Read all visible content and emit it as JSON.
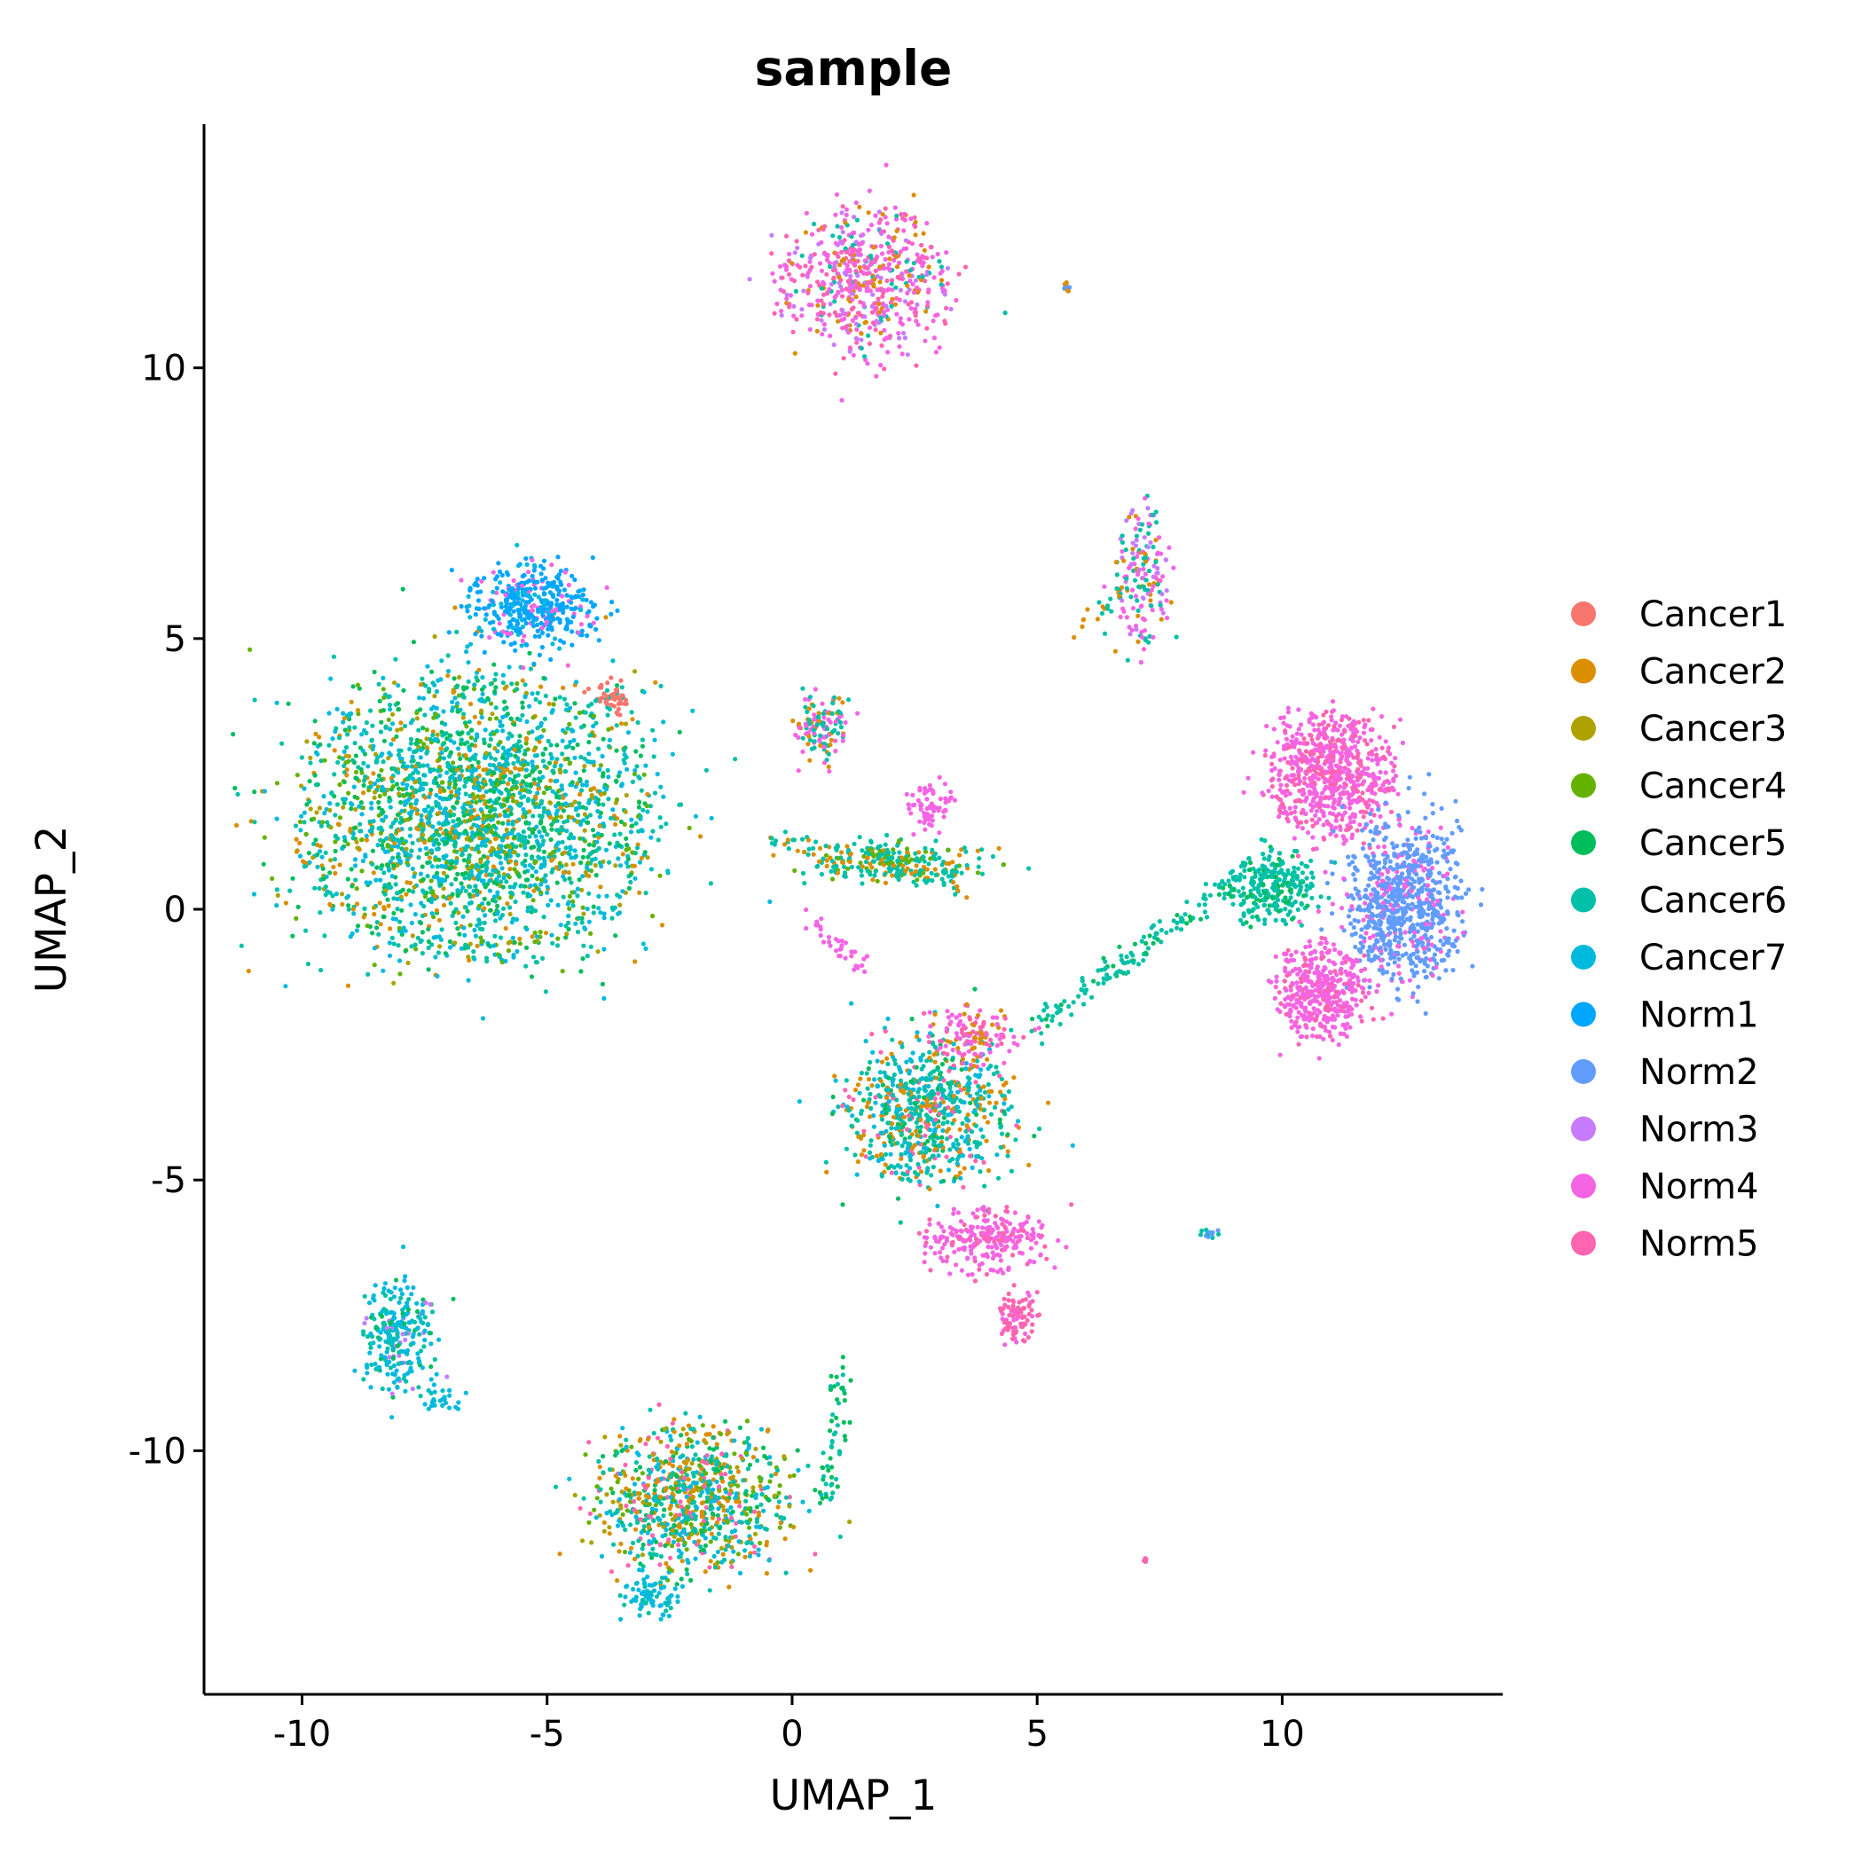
{
  "chart_data": {
    "type": "scatter",
    "title": "sample",
    "xlabel": "UMAP_1",
    "ylabel": "UMAP_2",
    "xlim": [
      -12.0,
      14.5
    ],
    "ylim": [
      -14.5,
      14.5
    ],
    "x_ticks": [
      -10,
      -5,
      0,
      5,
      10
    ],
    "y_ticks": [
      -10,
      -5,
      0,
      5,
      10
    ],
    "x_tick_labels": [
      "-10",
      "-5",
      "0",
      "5",
      "10"
    ],
    "y_tick_labels": [
      "-10",
      "-5",
      "0",
      "5",
      "10"
    ],
    "grid": false,
    "legend_position": "right",
    "legend_title": "",
    "series": [
      {
        "name": "Cancer1",
        "color": "#F8766D"
      },
      {
        "name": "Cancer2",
        "color": "#DB8E00"
      },
      {
        "name": "Cancer3",
        "color": "#AEA200"
      },
      {
        "name": "Cancer4",
        "color": "#64B200"
      },
      {
        "name": "Cancer5",
        "color": "#00BD5C"
      },
      {
        "name": "Cancer6",
        "color": "#00C1A7"
      },
      {
        "name": "Cancer7",
        "color": "#00BADE"
      },
      {
        "name": "Norm1",
        "color": "#00A6FF"
      },
      {
        "name": "Norm2",
        "color": "#619CFF"
      },
      {
        "name": "Norm3",
        "color": "#C77CFF"
      },
      {
        "name": "Norm4",
        "color": "#F564E3"
      },
      {
        "name": "Norm5",
        "color": "#FF64B0"
      }
    ],
    "clusters": [
      {
        "x": -6.5,
        "y": 1.7,
        "rx": 3.7,
        "ry": 2.6,
        "n": 2600,
        "mix": {
          "Cancer6": 3,
          "Cancer7": 3,
          "Cancer5": 2,
          "Cancer2": 1,
          "Cancer4": 1,
          "Cancer3": 1
        }
      },
      {
        "x": -5.3,
        "y": 5.6,
        "rx": 1.4,
        "ry": 0.8,
        "n": 420,
        "mix": {
          "Norm1": 5,
          "Cancer7": 1,
          "Norm4": 1
        }
      },
      {
        "x": -3.7,
        "y": 3.9,
        "rx": 0.4,
        "ry": 0.3,
        "n": 60,
        "mix": {
          "Cancer1": 3,
          "Cancer6": 1
        }
      },
      {
        "x": -8.0,
        "y": -7.9,
        "rx": 0.8,
        "ry": 1.1,
        "n": 260,
        "mix": {
          "Cancer7": 4,
          "Cancer6": 2,
          "Cancer5": 1,
          "Norm3": 1
        }
      },
      {
        "x": -2.1,
        "y": -10.9,
        "rx": 2.0,
        "ry": 1.4,
        "n": 900,
        "mix": {
          "Cancer2": 2,
          "Cancer6": 2,
          "Cancer7": 2,
          "Cancer5": 1,
          "Norm5": 1,
          "Cancer4": 1,
          "Cancer3": 1
        }
      },
      {
        "x": -2.9,
        "y": -12.7,
        "rx": 0.6,
        "ry": 0.4,
        "n": 80,
        "mix": {
          "Cancer7": 3,
          "Cancer6": 1
        }
      },
      {
        "x": 1.5,
        "y": 11.6,
        "rx": 1.7,
        "ry": 1.4,
        "n": 620,
        "mix": {
          "Norm4": 3,
          "Norm5": 2,
          "Norm3": 1,
          "Cancer2": 1,
          "Cancer6": 1
        }
      },
      {
        "x": 0.6,
        "y": 3.4,
        "rx": 0.6,
        "ry": 0.7,
        "n": 130,
        "mix": {
          "Norm4": 2,
          "Cancer6": 2,
          "Cancer2": 1
        }
      },
      {
        "x": 2.2,
        "y": 0.9,
        "rx": 1.8,
        "ry": 0.4,
        "n": 230,
        "mix": {
          "Cancer6": 3,
          "Cancer2": 1,
          "Cancer4": 1
        }
      },
      {
        "x": 2.8,
        "y": 1.9,
        "rx": 0.5,
        "ry": 0.6,
        "n": 70,
        "mix": {
          "Norm4": 3
        }
      },
      {
        "x": 2.8,
        "y": -3.7,
        "rx": 1.7,
        "ry": 1.4,
        "n": 760,
        "mix": {
          "Cancer6": 3,
          "Cancer7": 2,
          "Cancer2": 2,
          "Cancer5": 1,
          "Norm5": 1
        }
      },
      {
        "x": 3.7,
        "y": -2.3,
        "rx": 1.0,
        "ry": 0.6,
        "n": 130,
        "mix": {
          "Norm4": 2,
          "Norm5": 1,
          "Cancer2": 1
        }
      },
      {
        "x": 4.0,
        "y": -6.1,
        "rx": 1.3,
        "ry": 0.6,
        "n": 260,
        "mix": {
          "Norm4": 3,
          "Norm5": 1
        }
      },
      {
        "x": 4.6,
        "y": -7.5,
        "rx": 0.4,
        "ry": 0.5,
        "n": 90,
        "mix": {
          "Norm5": 3,
          "Norm4": 1
        }
      },
      {
        "x": 7.2,
        "y": 6.2,
        "rx": 0.6,
        "ry": 1.3,
        "n": 170,
        "mix": {
          "Cancer6": 2,
          "Norm4": 2,
          "Cancer2": 1,
          "Norm3": 1
        }
      },
      {
        "x": 11.0,
        "y": 2.5,
        "rx": 1.3,
        "ry": 1.2,
        "n": 700,
        "mix": {
          "Norm4": 4,
          "Norm5": 2
        }
      },
      {
        "x": 12.5,
        "y": 0.2,
        "rx": 1.2,
        "ry": 1.6,
        "n": 800,
        "mix": {
          "Norm2": 5,
          "Norm4": 1
        }
      },
      {
        "x": 9.8,
        "y": 0.4,
        "rx": 0.9,
        "ry": 0.7,
        "n": 280,
        "mix": {
          "Cancer6": 4,
          "Cancer5": 1
        }
      },
      {
        "x": 10.8,
        "y": -1.5,
        "rx": 1.0,
        "ry": 0.9,
        "n": 420,
        "mix": {
          "Norm4": 4,
          "Norm5": 1
        }
      },
      {
        "x": 5.6,
        "y": 11.5,
        "rx": 0.1,
        "ry": 0.1,
        "n": 12,
        "mix": {
          "Cancer2": 1,
          "Norm2": 1
        }
      },
      {
        "x": 8.5,
        "y": -6.0,
        "rx": 0.2,
        "ry": 0.1,
        "n": 15,
        "mix": {
          "Norm2": 1,
          "Cancer6": 1
        }
      },
      {
        "x": 7.2,
        "y": -12.0,
        "rx": 0.1,
        "ry": 0.05,
        "n": 6,
        "mix": {
          "Norm5": 1
        }
      }
    ],
    "bridges": [
      {
        "from": [
          5.0,
          -2.2
        ],
        "to": [
          9.2,
          0.7
        ],
        "n": 140,
        "mix": {
          "Cancer6": 4,
          "Cancer5": 1
        }
      },
      {
        "from": [
          -0.6,
          1.4
        ],
        "to": [
          3.6,
          0.4
        ],
        "n": 80,
        "mix": {
          "Cancer6": 2,
          "Cancer2": 1
        }
      },
      {
        "from": [
          1.0,
          -8.5
        ],
        "to": [
          0.7,
          -11.0
        ],
        "n": 60,
        "mix": {
          "Cancer5": 2,
          "Cancer6": 1
        }
      },
      {
        "from": [
          -7.5,
          -9.0
        ],
        "to": [
          -6.8,
          -9.0
        ],
        "n": 25,
        "mix": {
          "Cancer7": 1
        }
      },
      {
        "from": [
          5.7,
          5.1
        ],
        "to": [
          7.0,
          6.0
        ],
        "n": 25,
        "mix": {
          "Cancer6": 1,
          "Cancer2": 1
        }
      },
      {
        "from": [
          0.4,
          -0.2
        ],
        "to": [
          1.6,
          -1.2
        ],
        "n": 35,
        "mix": {
          "Norm4": 2
        }
      }
    ]
  }
}
